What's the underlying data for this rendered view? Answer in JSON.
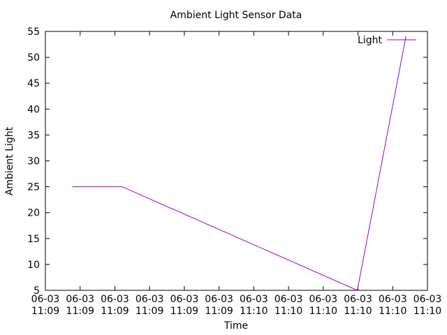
{
  "chart_data": {
    "type": "line",
    "title": "Ambient Light Sensor Data",
    "xlabel": "Time",
    "ylabel": "Ambient Light",
    "ylim": [
      5,
      55
    ],
    "yticks": [
      5,
      10,
      15,
      20,
      25,
      30,
      35,
      40,
      45,
      50,
      55
    ],
    "xticks": [
      {
        "date": "06-03",
        "time": "11:09"
      },
      {
        "date": "06-03",
        "time": "11:09"
      },
      {
        "date": "06-03",
        "time": "11:09"
      },
      {
        "date": "06-03",
        "time": "11:09"
      },
      {
        "date": "06-03",
        "time": "11:09"
      },
      {
        "date": "06-03",
        "time": "11:09"
      },
      {
        "date": "06-03",
        "time": "11:10"
      },
      {
        "date": "06-03",
        "time": "11:10"
      },
      {
        "date": "06-03",
        "time": "11:10"
      },
      {
        "date": "06-03",
        "time": "11:10"
      },
      {
        "date": "06-03",
        "time": "11:10"
      },
      {
        "date": "06-03",
        "time": "11:10"
      }
    ],
    "grid": false,
    "legend_position": "top-right",
    "series": [
      {
        "name": "Light",
        "color": "#9400d3",
        "points": [
          {
            "x_tick": 0.79,
            "y": 25
          },
          {
            "x_tick": 2.21,
            "y": 25
          },
          {
            "x_tick": 8.98,
            "y": 5
          },
          {
            "x_tick": 10.38,
            "y": 54
          }
        ]
      }
    ]
  }
}
